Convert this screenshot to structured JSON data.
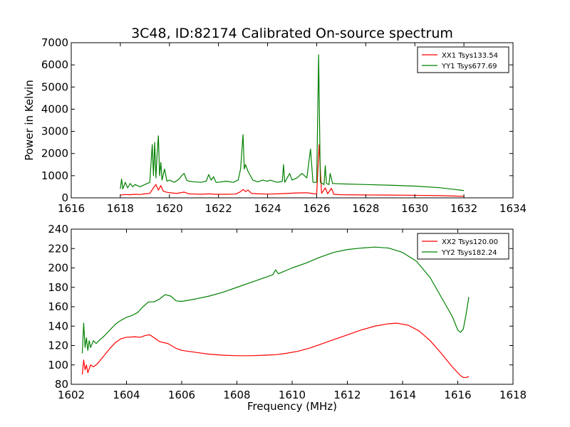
{
  "figure": {
    "title": "3C48, ID:82174 Calibrated On-source spectrum"
  },
  "chart_data": [
    {
      "type": "line",
      "title": "3C48, ID:82174 Calibrated On-source spectrum",
      "xlabel": "",
      "ylabel": "Power in Kelvin",
      "xlim": [
        1616,
        1634
      ],
      "ylim": [
        0,
        7000
      ],
      "xticks": [
        1616,
        1618,
        1620,
        1622,
        1624,
        1626,
        1628,
        1630,
        1632,
        1634
      ],
      "yticks": [
        0,
        1000,
        2000,
        3000,
        4000,
        5000,
        6000,
        7000
      ],
      "grid": false,
      "legend_position": "top-right",
      "series": [
        {
          "name": "XX1 Tsys133.54",
          "color": "#ff0000",
          "points": [
            [
              1618.0,
              130
            ],
            [
              1618.2,
              150
            ],
            [
              1618.4,
              140
            ],
            [
              1618.6,
              160
            ],
            [
              1618.8,
              150
            ],
            [
              1619.0,
              180
            ],
            [
              1619.2,
              200
            ],
            [
              1619.35,
              450
            ],
            [
              1619.45,
              600
            ],
            [
              1619.55,
              350
            ],
            [
              1619.65,
              550
            ],
            [
              1619.75,
              300
            ],
            [
              1619.9,
              250
            ],
            [
              1620.1,
              220
            ],
            [
              1620.3,
              200
            ],
            [
              1620.6,
              260
            ],
            [
              1620.8,
              180
            ],
            [
              1621.0,
              170
            ],
            [
              1621.3,
              160
            ],
            [
              1621.6,
              180
            ],
            [
              1621.9,
              160
            ],
            [
              1622.3,
              160
            ],
            [
              1622.7,
              170
            ],
            [
              1622.9,
              280
            ],
            [
              1623.0,
              380
            ],
            [
              1623.1,
              280
            ],
            [
              1623.2,
              350
            ],
            [
              1623.35,
              200
            ],
            [
              1623.6,
              180
            ],
            [
              1624.0,
              170
            ],
            [
              1624.4,
              180
            ],
            [
              1624.8,
              200
            ],
            [
              1625.2,
              220
            ],
            [
              1625.6,
              230
            ],
            [
              1625.8,
              200
            ],
            [
              1626.0,
              170
            ],
            [
              1626.1,
              2400
            ],
            [
              1626.2,
              200
            ],
            [
              1626.35,
              450
            ],
            [
              1626.45,
              180
            ],
            [
              1626.6,
              430
            ],
            [
              1626.7,
              160
            ],
            [
              1627.0,
              140
            ],
            [
              1628.0,
              130
            ],
            [
              1629.0,
              125
            ],
            [
              1630.0,
              115
            ],
            [
              1631.0,
              100
            ],
            [
              1632.0,
              70
            ]
          ]
        },
        {
          "name": "YY1 Tsys677.69",
          "color": "#008000",
          "points": [
            [
              1618.0,
              400
            ],
            [
              1618.05,
              850
            ],
            [
              1618.1,
              400
            ],
            [
              1618.2,
              700
            ],
            [
              1618.3,
              450
            ],
            [
              1618.4,
              650
            ],
            [
              1618.5,
              500
            ],
            [
              1618.6,
              600
            ],
            [
              1618.8,
              500
            ],
            [
              1619.0,
              600
            ],
            [
              1619.2,
              700
            ],
            [
              1619.3,
              2400
            ],
            [
              1619.35,
              1000
            ],
            [
              1619.4,
              2500
            ],
            [
              1619.45,
              900
            ],
            [
              1619.5,
              2000
            ],
            [
              1619.55,
              2800
            ],
            [
              1619.6,
              1000
            ],
            [
              1619.65,
              1600
            ],
            [
              1619.7,
              800
            ],
            [
              1619.8,
              1300
            ],
            [
              1619.9,
              750
            ],
            [
              1620.0,
              800
            ],
            [
              1620.2,
              700
            ],
            [
              1620.4,
              850
            ],
            [
              1620.5,
              1000
            ],
            [
              1620.6,
              1100
            ],
            [
              1620.7,
              800
            ],
            [
              1620.8,
              750
            ],
            [
              1621.0,
              720
            ],
            [
              1621.3,
              700
            ],
            [
              1621.5,
              750
            ],
            [
              1621.6,
              1050
            ],
            [
              1621.7,
              800
            ],
            [
              1621.8,
              950
            ],
            [
              1621.9,
              700
            ],
            [
              1622.0,
              700
            ],
            [
              1622.3,
              750
            ],
            [
              1622.6,
              700
            ],
            [
              1622.8,
              800
            ],
            [
              1622.9,
              1300
            ],
            [
              1622.95,
              2100
            ],
            [
              1623.0,
              2850
            ],
            [
              1623.05,
              1300
            ],
            [
              1623.1,
              1500
            ],
            [
              1623.2,
              1200
            ],
            [
              1623.3,
              1000
            ],
            [
              1623.4,
              800
            ],
            [
              1623.6,
              720
            ],
            [
              1623.8,
              800
            ],
            [
              1624.0,
              750
            ],
            [
              1624.1,
              800
            ],
            [
              1624.4,
              700
            ],
            [
              1624.6,
              750
            ],
            [
              1624.65,
              1500
            ],
            [
              1624.7,
              700
            ],
            [
              1624.8,
              900
            ],
            [
              1624.9,
              1100
            ],
            [
              1625.0,
              800
            ],
            [
              1625.2,
              900
            ],
            [
              1625.4,
              1100
            ],
            [
              1625.6,
              900
            ],
            [
              1625.75,
              2200
            ],
            [
              1625.85,
              700
            ],
            [
              1626.0,
              700
            ],
            [
              1626.08,
              6450
            ],
            [
              1626.15,
              700
            ],
            [
              1626.3,
              600
            ],
            [
              1626.35,
              1450
            ],
            [
              1626.4,
              650
            ],
            [
              1626.5,
              600
            ],
            [
              1626.55,
              1100
            ],
            [
              1626.65,
              650
            ],
            [
              1626.8,
              640
            ],
            [
              1627.0,
              630
            ],
            [
              1628.0,
              600
            ],
            [
              1629.0,
              570
            ],
            [
              1630.0,
              530
            ],
            [
              1631.0,
              460
            ],
            [
              1632.0,
              330
            ]
          ]
        }
      ]
    },
    {
      "type": "line",
      "title": "",
      "xlabel": "Frequency (MHz)",
      "ylabel": "",
      "xlim": [
        1602,
        1618
      ],
      "ylim": [
        80,
        240
      ],
      "xticks": [
        1602,
        1604,
        1606,
        1608,
        1610,
        1612,
        1614,
        1616,
        1618
      ],
      "yticks": [
        80,
        100,
        120,
        140,
        160,
        180,
        200,
        220,
        240
      ],
      "grid": false,
      "legend_position": "top-right",
      "series": [
        {
          "name": "XX2 Tsys120.00",
          "color": "#ff0000",
          "points": [
            [
              1602.4,
              90
            ],
            [
              1602.45,
              105
            ],
            [
              1602.5,
              95
            ],
            [
              1602.55,
              100
            ],
            [
              1602.6,
              92
            ],
            [
              1602.7,
              100
            ],
            [
              1602.8,
              98
            ],
            [
              1602.9,
              100
            ],
            [
              1603.0,
              103
            ],
            [
              1603.2,
              110
            ],
            [
              1603.4,
              117
            ],
            [
              1603.6,
              123
            ],
            [
              1603.8,
              127
            ],
            [
              1604.0,
              128.5
            ],
            [
              1604.3,
              129
            ],
            [
              1604.5,
              128.5
            ],
            [
              1604.7,
              130.5
            ],
            [
              1604.85,
              131
            ],
            [
              1605.0,
              128
            ],
            [
              1605.2,
              124
            ],
            [
              1605.5,
              122
            ],
            [
              1605.8,
              117
            ],
            [
              1606.0,
              115
            ],
            [
              1606.5,
              113
            ],
            [
              1607.0,
              111
            ],
            [
              1607.5,
              110
            ],
            [
              1608.0,
              109.5
            ],
            [
              1608.5,
              109.5
            ],
            [
              1609.0,
              110
            ],
            [
              1609.4,
              110.5
            ],
            [
              1609.8,
              112
            ],
            [
              1610.2,
              114
            ],
            [
              1610.6,
              117
            ],
            [
              1611.0,
              121
            ],
            [
              1611.5,
              126
            ],
            [
              1612.0,
              131
            ],
            [
              1612.5,
              136
            ],
            [
              1613.0,
              140
            ],
            [
              1613.5,
              142.5
            ],
            [
              1613.8,
              143
            ],
            [
              1614.2,
              141
            ],
            [
              1614.6,
              135
            ],
            [
              1615.0,
              125
            ],
            [
              1615.4,
              112
            ],
            [
              1615.8,
              98
            ],
            [
              1616.1,
              89
            ],
            [
              1616.2,
              87
            ],
            [
              1616.3,
              87
            ],
            [
              1616.4,
              88
            ]
          ]
        },
        {
          "name": "YY2 Tsys182.24",
          "color": "#008000",
          "points": [
            [
              1602.4,
              112
            ],
            [
              1602.45,
              143
            ],
            [
              1602.5,
              118
            ],
            [
              1602.55,
              128
            ],
            [
              1602.6,
              115
            ],
            [
              1602.65,
              125
            ],
            [
              1602.7,
              118
            ],
            [
              1602.8,
              125
            ],
            [
              1602.9,
              122
            ],
            [
              1603.0,
              125
            ],
            [
              1603.2,
              130
            ],
            [
              1603.4,
              136
            ],
            [
              1603.6,
              142
            ],
            [
              1603.8,
              146
            ],
            [
              1604.0,
              149
            ],
            [
              1604.2,
              151
            ],
            [
              1604.4,
              154
            ],
            [
              1604.6,
              160
            ],
            [
              1604.8,
              165
            ],
            [
              1605.0,
              165
            ],
            [
              1605.2,
              168
            ],
            [
              1605.4,
              172.5
            ],
            [
              1605.6,
              171
            ],
            [
              1605.8,
              166
            ],
            [
              1606.0,
              165.5
            ],
            [
              1606.5,
              168
            ],
            [
              1607.0,
              171
            ],
            [
              1607.5,
              175
            ],
            [
              1608.0,
              180
            ],
            [
              1608.5,
              185
            ],
            [
              1609.0,
              190
            ],
            [
              1609.3,
              193
            ],
            [
              1609.4,
              198
            ],
            [
              1609.5,
              194
            ],
            [
              1610.0,
              200
            ],
            [
              1610.5,
              205
            ],
            [
              1611.0,
              211
            ],
            [
              1611.5,
              216
            ],
            [
              1612.0,
              219
            ],
            [
              1612.5,
              220.5
            ],
            [
              1613.0,
              221.5
            ],
            [
              1613.5,
              220.5
            ],
            [
              1614.0,
              216
            ],
            [
              1614.5,
              207
            ],
            [
              1615.0,
              190
            ],
            [
              1615.4,
              170
            ],
            [
              1615.8,
              150
            ],
            [
              1616.0,
              136
            ],
            [
              1616.1,
              133.5
            ],
            [
              1616.2,
              137
            ],
            [
              1616.3,
              152
            ],
            [
              1616.4,
              170
            ]
          ]
        }
      ]
    }
  ]
}
